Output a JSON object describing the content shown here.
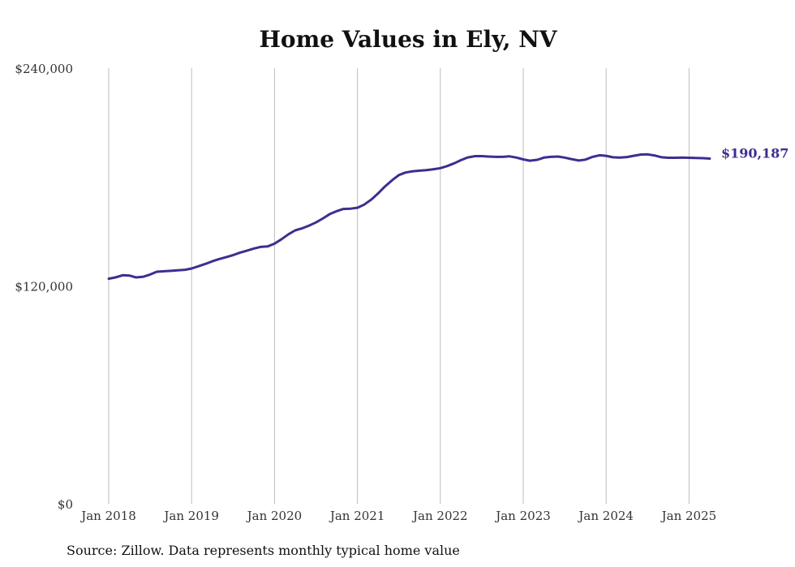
{
  "chart_data": {
    "type": "line",
    "title": "Home Values in Ely, NV",
    "source": "Source: Zillow. Data represents monthly typical home value",
    "xlabel": "",
    "ylabel": "",
    "ylim": [
      0,
      240000
    ],
    "y_ticks": [
      {
        "value": 0,
        "label": "$0"
      },
      {
        "value": 120000,
        "label": "$120,000"
      },
      {
        "value": 240000,
        "label": "$240,000"
      }
    ],
    "x_ticks": [
      {
        "value": 2018.0,
        "label": "Jan 2018"
      },
      {
        "value": 2019.0,
        "label": "Jan 2019"
      },
      {
        "value": 2020.0,
        "label": "Jan 2020"
      },
      {
        "value": 2021.0,
        "label": "Jan 2021"
      },
      {
        "value": 2022.0,
        "label": "Jan 2022"
      },
      {
        "value": 2023.0,
        "label": "Jan 2023"
      },
      {
        "value": 2024.0,
        "label": "Jan 2024"
      },
      {
        "value": 2025.0,
        "label": "Jan 2025"
      }
    ],
    "x_range": [
      2018.0,
      2025.25
    ],
    "grid": "vertical",
    "series": [
      {
        "color": "#3b2f8f",
        "end_label": "$190,187",
        "points": [
          [
            2018.0,
            124000
          ],
          [
            2018.08,
            124700
          ],
          [
            2018.17,
            125900
          ],
          [
            2018.25,
            125700
          ],
          [
            2018.33,
            124700
          ],
          [
            2018.42,
            125100
          ],
          [
            2018.5,
            126300
          ],
          [
            2018.58,
            127800
          ],
          [
            2018.67,
            128100
          ],
          [
            2018.75,
            128300
          ],
          [
            2018.83,
            128600
          ],
          [
            2018.92,
            128900
          ],
          [
            2019.0,
            129600
          ],
          [
            2019.08,
            130800
          ],
          [
            2019.17,
            132200
          ],
          [
            2019.25,
            133600
          ],
          [
            2019.33,
            134800
          ],
          [
            2019.42,
            135900
          ],
          [
            2019.5,
            137000
          ],
          [
            2019.58,
            138300
          ],
          [
            2019.67,
            139500
          ],
          [
            2019.75,
            140600
          ],
          [
            2019.83,
            141500
          ],
          [
            2019.92,
            141800
          ],
          [
            2020.0,
            143300
          ],
          [
            2020.08,
            145600
          ],
          [
            2020.17,
            148500
          ],
          [
            2020.25,
            150600
          ],
          [
            2020.33,
            151700
          ],
          [
            2020.42,
            153300
          ],
          [
            2020.5,
            155000
          ],
          [
            2020.58,
            157100
          ],
          [
            2020.67,
            159700
          ],
          [
            2020.75,
            161200
          ],
          [
            2020.83,
            162400
          ],
          [
            2020.92,
            162600
          ],
          [
            2021.0,
            163100
          ],
          [
            2021.08,
            164800
          ],
          [
            2021.17,
            167700
          ],
          [
            2021.25,
            171000
          ],
          [
            2021.33,
            174700
          ],
          [
            2021.42,
            178300
          ],
          [
            2021.5,
            181100
          ],
          [
            2021.58,
            182500
          ],
          [
            2021.67,
            183200
          ],
          [
            2021.75,
            183500
          ],
          [
            2021.83,
            183800
          ],
          [
            2021.92,
            184300
          ],
          [
            2022.0,
            184900
          ],
          [
            2022.08,
            186000
          ],
          [
            2022.17,
            187600
          ],
          [
            2022.25,
            189300
          ],
          [
            2022.33,
            190800
          ],
          [
            2022.42,
            191500
          ],
          [
            2022.5,
            191500
          ],
          [
            2022.58,
            191300
          ],
          [
            2022.67,
            191100
          ],
          [
            2022.75,
            191100
          ],
          [
            2022.83,
            191400
          ],
          [
            2022.92,
            190700
          ],
          [
            2023.0,
            189700
          ],
          [
            2023.08,
            189000
          ],
          [
            2023.17,
            189500
          ],
          [
            2023.25,
            190700
          ],
          [
            2023.33,
            191100
          ],
          [
            2023.42,
            191300
          ],
          [
            2023.5,
            190700
          ],
          [
            2023.58,
            189900
          ],
          [
            2023.67,
            189100
          ],
          [
            2023.75,
            189600
          ],
          [
            2023.83,
            191000
          ],
          [
            2023.92,
            192000
          ],
          [
            2024.0,
            191700
          ],
          [
            2024.08,
            190900
          ],
          [
            2024.17,
            190700
          ],
          [
            2024.25,
            191000
          ],
          [
            2024.33,
            191700
          ],
          [
            2024.42,
            192400
          ],
          [
            2024.5,
            192500
          ],
          [
            2024.58,
            191900
          ],
          [
            2024.67,
            190900
          ],
          [
            2024.75,
            190600
          ],
          [
            2024.83,
            190600
          ],
          [
            2024.92,
            190700
          ],
          [
            2025.0,
            190600
          ],
          [
            2025.08,
            190500
          ],
          [
            2025.17,
            190400
          ],
          [
            2025.25,
            190187
          ]
        ]
      }
    ]
  }
}
